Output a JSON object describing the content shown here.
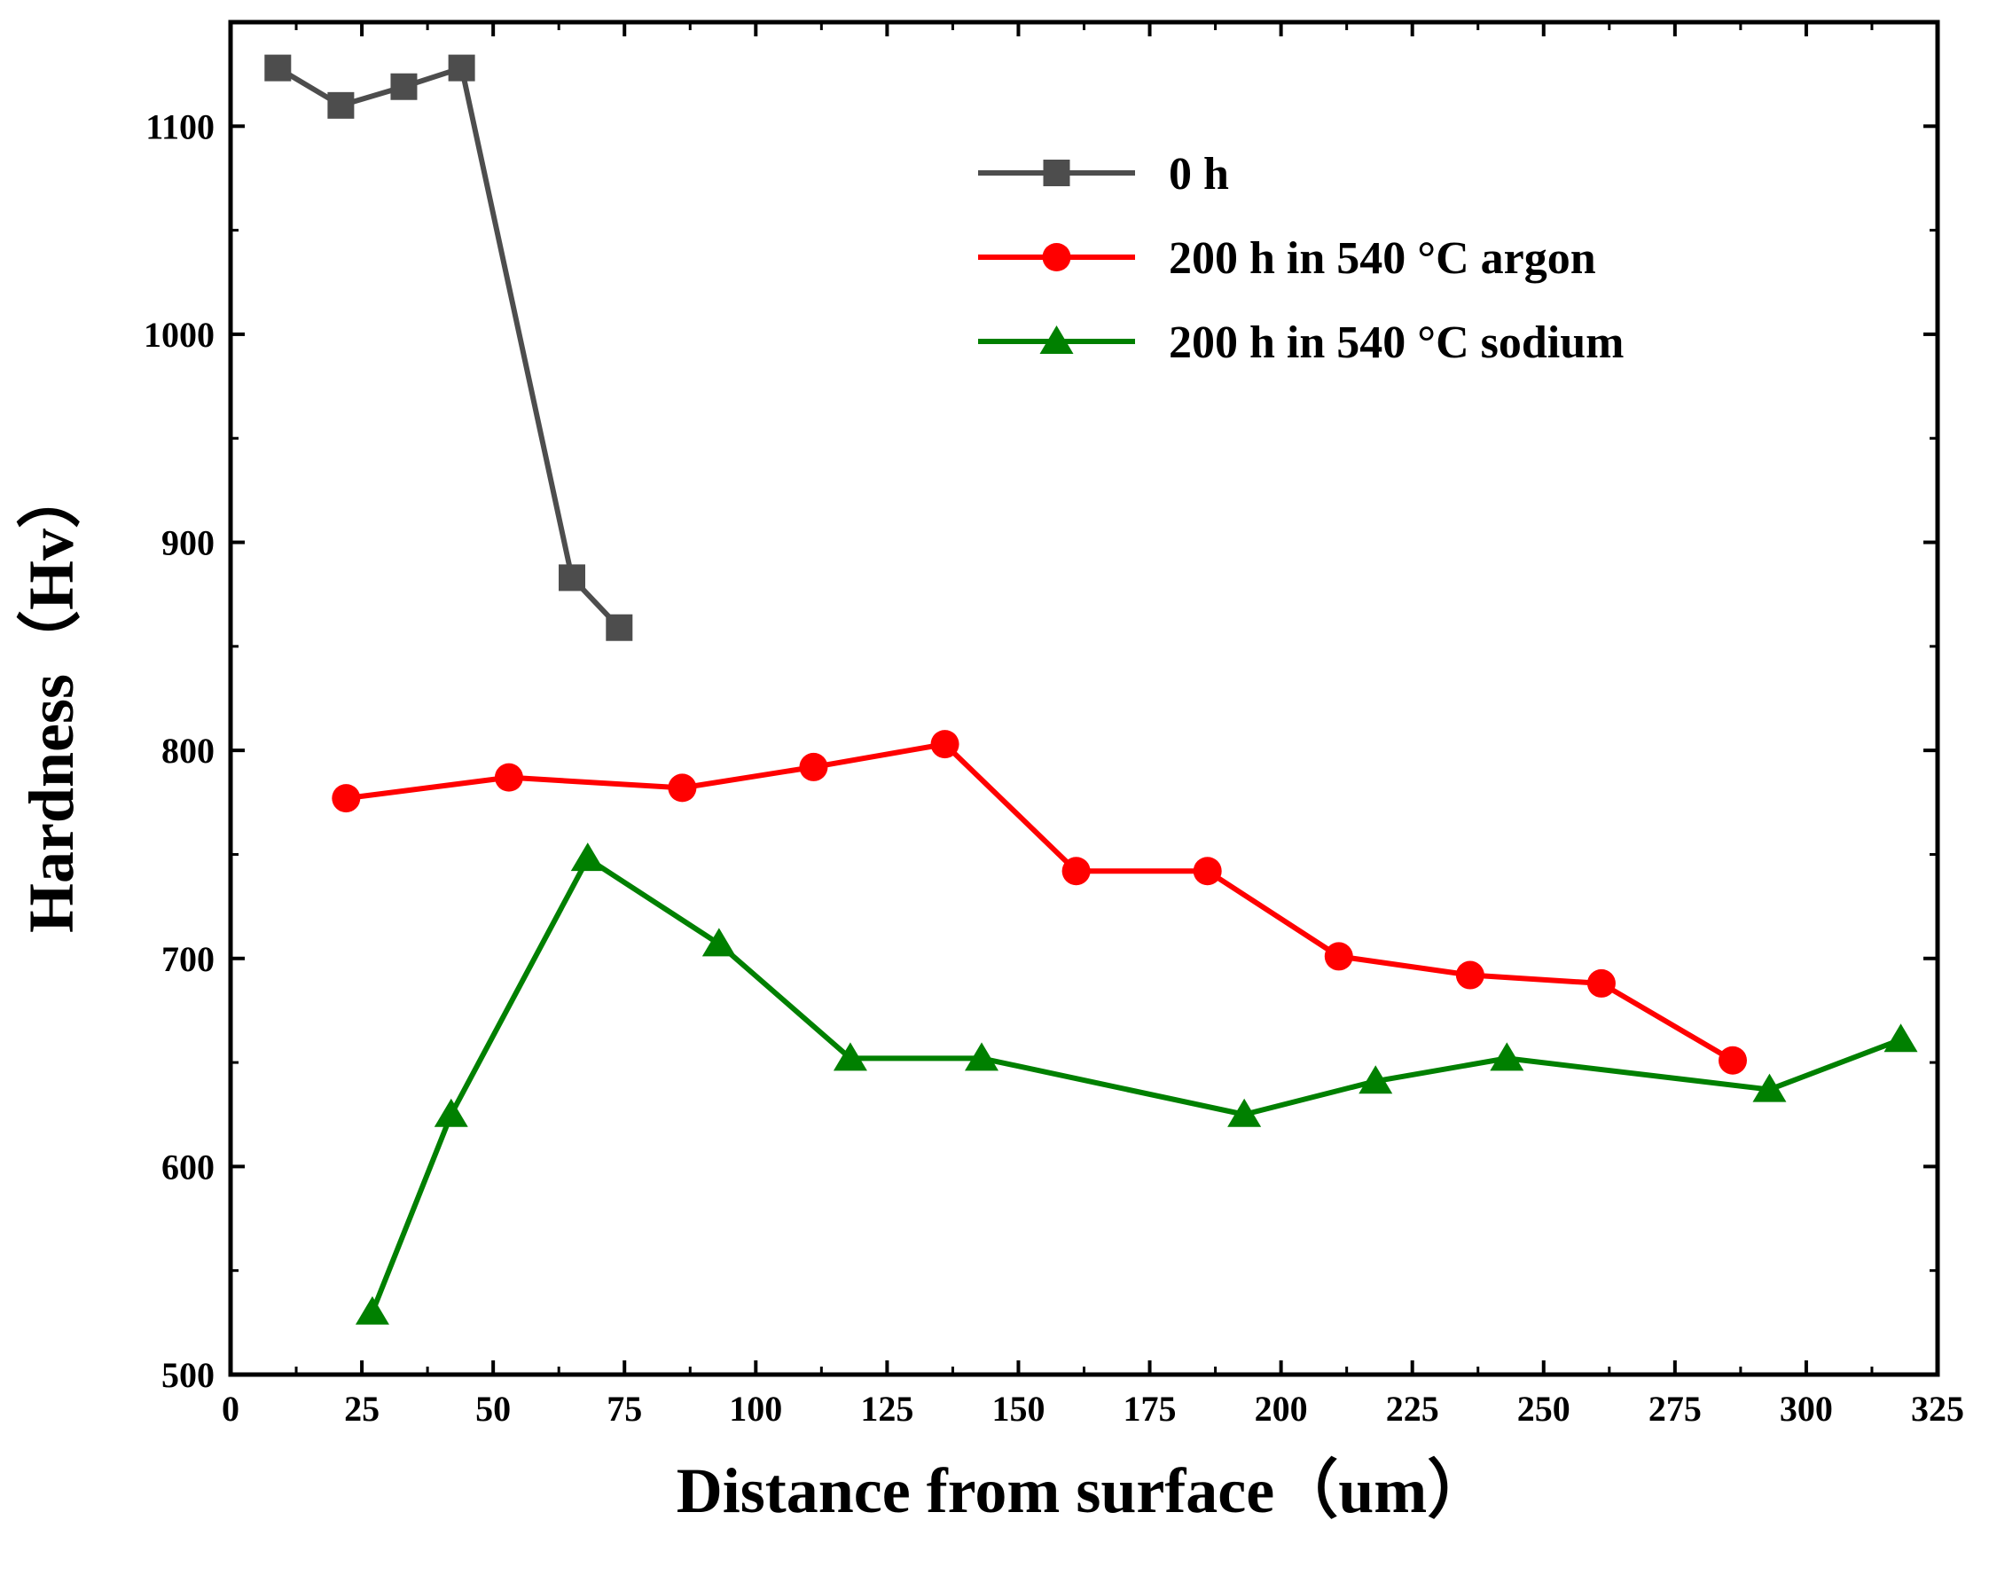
{
  "chart_data": {
    "type": "line",
    "title": "",
    "xlabel": "Distance from surface（um）",
    "ylabel": "Hardness（Hv）",
    "xlim": [
      0,
      325
    ],
    "ylim": [
      500,
      1150
    ],
    "xticks": [
      0,
      25,
      50,
      75,
      100,
      125,
      150,
      175,
      200,
      225,
      250,
      275,
      300,
      325
    ],
    "yticks": [
      500,
      600,
      700,
      800,
      900,
      1000,
      1100
    ],
    "grid": false,
    "legend_position": "top-right",
    "series": [
      {
        "name": "0 h",
        "color": "#4d4d4d",
        "marker": "square",
        "x": [
          9,
          21,
          33,
          44,
          65,
          74
        ],
        "y": [
          1128,
          1110,
          1119,
          1128,
          883,
          859
        ]
      },
      {
        "name": "200 h in 540 °C argon",
        "color": "#ff0000",
        "marker": "circle",
        "x": [
          22,
          53,
          86,
          111,
          136,
          161,
          186,
          211,
          236,
          261,
          286
        ],
        "y": [
          777,
          787,
          782,
          792,
          803,
          742,
          742,
          701,
          692,
          688,
          651
        ]
      },
      {
        "name": "200 h in 540 °C sodium",
        "color": "#008000",
        "marker": "triangle",
        "x": [
          27,
          42,
          68,
          93,
          118,
          143,
          193,
          218,
          243,
          293,
          318
        ],
        "y": [
          530,
          625,
          748,
          707,
          652,
          652,
          625,
          641,
          652,
          637,
          661
        ]
      }
    ]
  }
}
